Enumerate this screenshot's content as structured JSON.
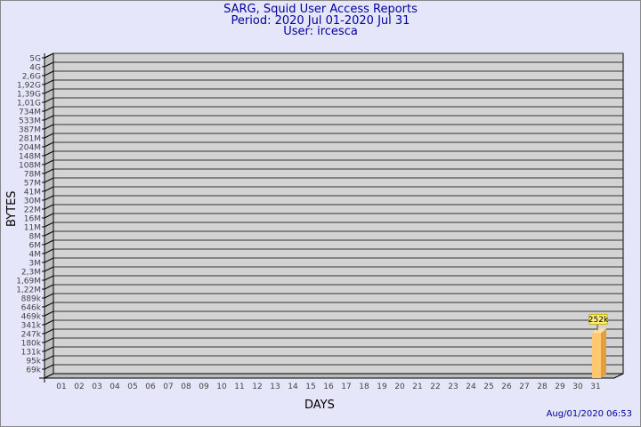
{
  "chart_data": {
    "type": "bar",
    "title": "SARG, Squid User Access Reports",
    "subtitle": [
      "Period: 2020 Jul 01-2020 Jul 31",
      "User: ircesca"
    ],
    "xlabel": "DAYS",
    "ylabel": "BYTES",
    "y_scale": "log",
    "y_ticks": [
      "5G",
      "4G",
      "2,6G",
      "1,92G",
      "1,39G",
      "1,01G",
      "734M",
      "533M",
      "387M",
      "281M",
      "204M",
      "148M",
      "108M",
      "78M",
      "57M",
      "41M",
      "30M",
      "22M",
      "16M",
      "11M",
      "8M",
      "6M",
      "4M",
      "3M",
      "2,3M",
      "1,69M",
      "1,22M",
      "889k",
      "646k",
      "469k",
      "341k",
      "247k",
      "180k",
      "131k",
      "95k",
      "69k"
    ],
    "categories": [
      "01",
      "02",
      "03",
      "04",
      "05",
      "06",
      "07",
      "08",
      "09",
      "10",
      "11",
      "12",
      "13",
      "14",
      "15",
      "16",
      "17",
      "18",
      "19",
      "20",
      "21",
      "22",
      "23",
      "24",
      "25",
      "26",
      "27",
      "28",
      "29",
      "30",
      "31"
    ],
    "values": [
      0,
      0,
      0,
      0,
      0,
      0,
      0,
      0,
      0,
      0,
      0,
      0,
      0,
      0,
      0,
      0,
      0,
      0,
      0,
      0,
      0,
      0,
      0,
      0,
      0,
      0,
      0,
      0,
      0,
      0,
      252000
    ],
    "data_labels": {
      "31": "252k"
    },
    "grid": true,
    "colors": {
      "bar": "#ffc870",
      "bar_side": "#e0a040",
      "plot_bg": "#d3d3d3",
      "page_bg": "#e6e6fa",
      "title": "#0000a0"
    }
  },
  "footer": {
    "timestamp": "Aug/01/2020 06:53"
  }
}
